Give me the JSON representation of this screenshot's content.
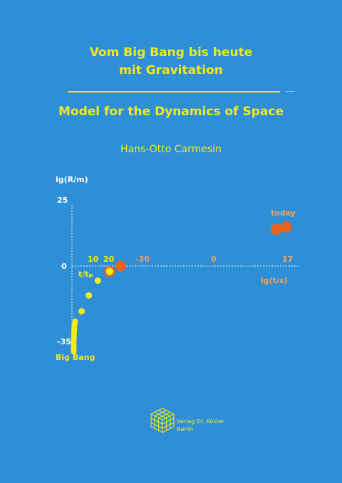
{
  "cover": {
    "title_line1": "Vom Big Bang bis heute",
    "title_line2": "mit Gravitation",
    "subtitle": "Model for the Dynamics of Space",
    "author": "Hans-Otto Carmesin",
    "publisher_name": "Verlag Dr. Köster",
    "publisher_city": "Berlin",
    "publisher_logo_icon": "cube-logo-icon"
  },
  "colors": {
    "background": "#2f8fd6",
    "yellow": "#f3ea1c",
    "orange": "#e8641e",
    "axis": "#8fc4ee"
  },
  "chart_data": {
    "type": "scatter",
    "ylabel": "lg(R/m)",
    "xlabel": "lg(t/s)",
    "xlabel_planck": "t/tP",
    "y_ticks": [
      "25",
      "0",
      "-35"
    ],
    "x_ticks_planck": [
      "10",
      "20"
    ],
    "x_ticks_seconds": [
      "-30",
      "0",
      "17"
    ],
    "annotations": {
      "end": "today",
      "start": "Big Bang"
    },
    "ylim": [
      -35,
      25
    ],
    "series": [
      {
        "color": "yellow",
        "points": [
          {
            "x": 0.2,
            "y": -35
          },
          {
            "x": 0.2,
            "y": -34.2
          },
          {
            "x": 0.2,
            "y": -33.4
          },
          {
            "x": 0.2,
            "y": -32.6
          },
          {
            "x": 0.2,
            "y": -31.8
          },
          {
            "x": 0.2,
            "y": -31
          },
          {
            "x": 0.2,
            "y": -30.2
          },
          {
            "x": 0.3,
            "y": -29.4
          },
          {
            "x": 0.3,
            "y": -28.6
          },
          {
            "x": 0.3,
            "y": -27.8
          },
          {
            "x": 0.4,
            "y": -27
          },
          {
            "x": 0.4,
            "y": -26.2
          },
          {
            "x": 0.5,
            "y": -25.4
          },
          {
            "x": 0.6,
            "y": -24.6
          },
          {
            "x": 0.8,
            "y": -23.6
          },
          {
            "x": 1,
            "y": -22.6
          },
          {
            "x": 4.5,
            "y": -18.5
          },
          {
            "x": 8.5,
            "y": -12
          },
          {
            "x": 13.5,
            "y": -6
          },
          {
            "x": 20,
            "y": -2.2
          }
        ]
      },
      {
        "color": "orange",
        "points": [
          {
            "x": 20,
            "y": -2.2
          },
          {
            "x": 26,
            "y": 0
          },
          {
            "x": 105,
            "y": 15
          },
          {
            "x": 110,
            "y": 16
          }
        ]
      }
    ]
  }
}
